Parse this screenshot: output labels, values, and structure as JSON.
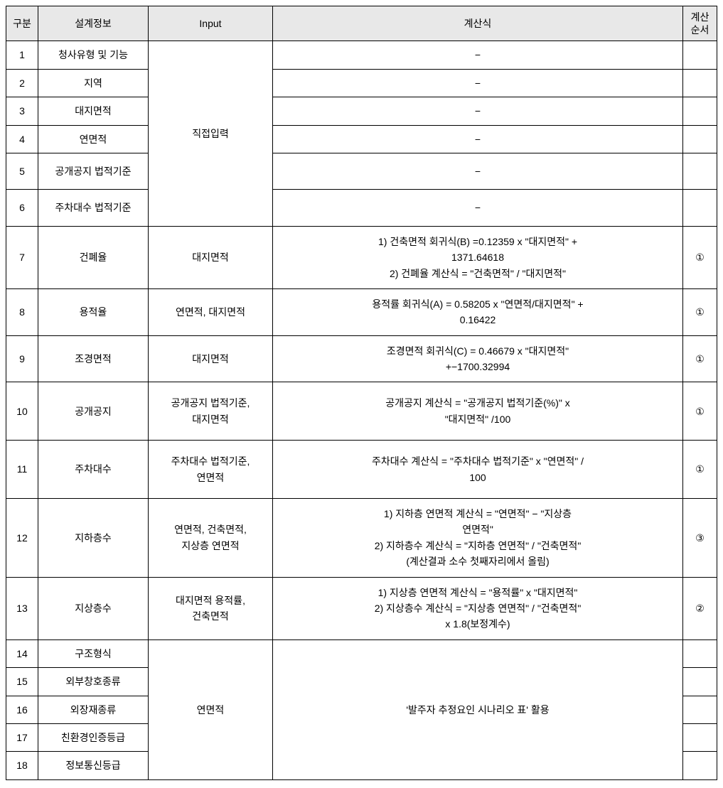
{
  "headers": {
    "num": "구분",
    "design": "설계정보",
    "input": "Input",
    "formula": "계산식",
    "order": "계산\n순서"
  },
  "direct_input_label": "직접입력",
  "area_label": "연면적",
  "scenario_label": "'발주자 추정요인 시나리오 표'  활용",
  "rows": {
    "r1": {
      "num": "1",
      "design": "청사유형 및 기능",
      "formula": "−",
      "order": ""
    },
    "r2": {
      "num": "2",
      "design": "지역",
      "formula": "−",
      "order": ""
    },
    "r3": {
      "num": "3",
      "design": "대지면적",
      "formula": "−",
      "order": ""
    },
    "r4": {
      "num": "4",
      "design": "연면적",
      "formula": "−",
      "order": ""
    },
    "r5": {
      "num": "5",
      "design": "공개공지 법적기준",
      "formula": "−",
      "order": ""
    },
    "r6": {
      "num": "6",
      "design": "주차대수 법적기준",
      "formula": "−",
      "order": ""
    },
    "r7": {
      "num": "7",
      "design": "건폐율",
      "input": "대지면적",
      "formula_l1": "1) 건축면적 회귀식(B) =0.12359 x \"대지면적\" +",
      "formula_l2": "1371.64618",
      "formula_l3": "2) 건폐율 계산식 =  \"건축면적\"  /  \"대지면적\"",
      "order": "①"
    },
    "r8": {
      "num": "8",
      "design": "용적율",
      "input": "연면적, 대지면적",
      "formula_l1": "용적률 회귀식(A) = 0.58205 x \"연면적/대지면적\" +",
      "formula_l2": "0.16422",
      "order": "①"
    },
    "r9": {
      "num": "9",
      "design": "조경면적",
      "input": "대지면적",
      "formula_l1": "조경면적 회귀식(C) = 0.46679 x  \"대지면적\"",
      "formula_l2": "+−1700.32994",
      "order": "①"
    },
    "r10": {
      "num": "10",
      "design": "공개공지",
      "input": "공개공지 법적기준,\n대지면적",
      "formula_l1": "공개공지 계산식 =  \"공개공지 법적기준(%)\"  x",
      "formula_l2": "\"대지면적\" /100",
      "order": "①"
    },
    "r11": {
      "num": "11",
      "design": "주차대수",
      "input": "주차대수 법적기준,\n연면적",
      "formula_l1": "주차대수 계산식 =  \"주차대수 법적기준\"  x \"연면적\" /",
      "formula_l2": "100",
      "order": "①"
    },
    "r12": {
      "num": "12",
      "design": "지하층수",
      "input": "연면적, 건축면적,\n지상층 연면적",
      "formula_l1": "1) 지하층 연면적 계산식 =  \"연면적\"  −  \"지상층",
      "formula_l2": "연면적\"",
      "formula_l3": "2) 지하층수 계산식 =  \"지하층 연면적\"  /  \"건축면적\"",
      "formula_l4": "(계산결과 소수 첫째자리에서 올림)",
      "order": "③"
    },
    "r13": {
      "num": "13",
      "design": "지상층수",
      "input": "대지면적 용적률,\n건축면적",
      "formula_l1": "1) 지상층 연면적 계산식 =  \"용적률\"  x  \"대지면적\"",
      "formula_l2": "2) 지상층수 계산식 =  \"지상층 연면적\"  /  \"건축면적\"",
      "formula_l3": "x 1.8(보정계수)",
      "order": "②"
    },
    "r14": {
      "num": "14",
      "design": "구조형식",
      "order": ""
    },
    "r15": {
      "num": "15",
      "design": "외부창호종류",
      "order": ""
    },
    "r16": {
      "num": "16",
      "design": "외장재종류",
      "order": ""
    },
    "r17": {
      "num": "17",
      "design": "친환경인증등급",
      "order": ""
    },
    "r18": {
      "num": "18",
      "design": "정보통신등급",
      "order": ""
    }
  }
}
